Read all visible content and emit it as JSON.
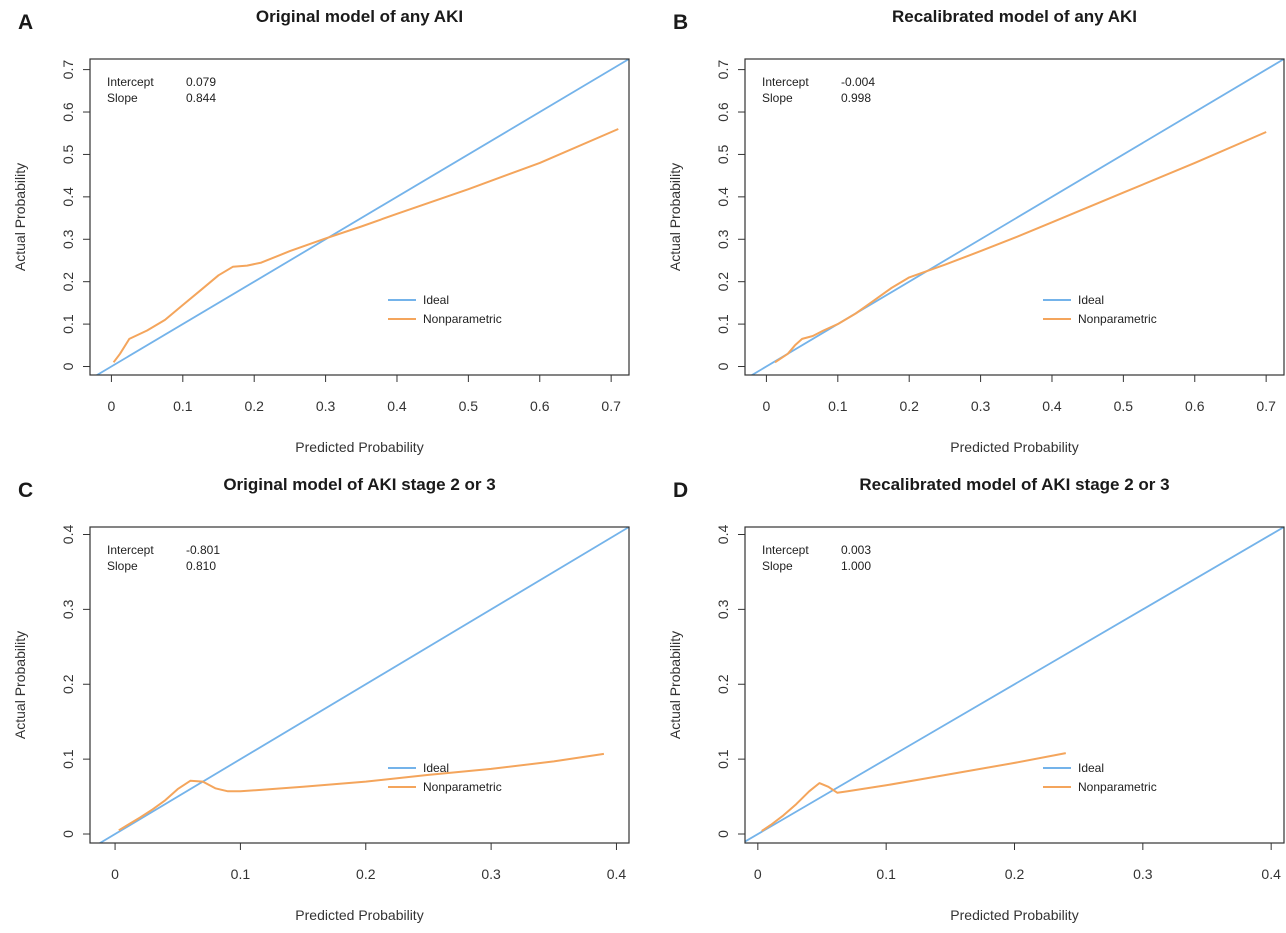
{
  "colors": {
    "ideal": "#74b3ea",
    "nonparametric": "#f4a55c",
    "axis": "#333333"
  },
  "chart_data": [
    {
      "letter": "A",
      "title": "Original model of any AKI",
      "type": "line",
      "xlabel": "Predicted Probability",
      "ylabel": "Actual Probability",
      "xlim": [
        -0.03,
        0.725
      ],
      "ylim": [
        -0.02,
        0.725
      ],
      "xticks": [
        0.0,
        0.1,
        0.2,
        0.3,
        0.4,
        0.5,
        0.6,
        0.7
      ],
      "yticks": [
        0.0,
        0.1,
        0.2,
        0.3,
        0.4,
        0.5,
        0.6,
        0.7
      ],
      "stats": [
        {
          "label": "Intercept",
          "value": "0.079"
        },
        {
          "label": "Slope",
          "value": "0.844"
        }
      ],
      "legend": [
        "Ideal",
        "Nonparametric"
      ],
      "legend_position": "right",
      "series": [
        {
          "name": "Ideal",
          "x": [
            -0.03,
            0.725
          ],
          "y": [
            -0.03,
            0.725
          ]
        },
        {
          "name": "Nonparametric",
          "x": [
            0.003,
            0.012,
            0.025,
            0.05,
            0.075,
            0.1,
            0.125,
            0.15,
            0.17,
            0.19,
            0.21,
            0.25,
            0.3,
            0.35,
            0.4,
            0.5,
            0.6,
            0.71
          ],
          "y": [
            0.01,
            0.03,
            0.065,
            0.085,
            0.11,
            0.145,
            0.18,
            0.215,
            0.235,
            0.238,
            0.245,
            0.272,
            0.302,
            0.33,
            0.36,
            0.418,
            0.48,
            0.56
          ]
        }
      ]
    },
    {
      "letter": "B",
      "title": "Recalibrated model of any AKI",
      "type": "line",
      "xlabel": "Predicted Probability",
      "ylabel": "Actual Probability",
      "xlim": [
        -0.03,
        0.725
      ],
      "ylim": [
        -0.02,
        0.725
      ],
      "xticks": [
        0.0,
        0.1,
        0.2,
        0.3,
        0.4,
        0.5,
        0.6,
        0.7
      ],
      "yticks": [
        0.0,
        0.1,
        0.2,
        0.3,
        0.4,
        0.5,
        0.6,
        0.7
      ],
      "stats": [
        {
          "label": "Intercept",
          "value": "-0.004"
        },
        {
          "label": "Slope",
          "value": "0.998"
        }
      ],
      "legend": [
        "Ideal",
        "Nonparametric"
      ],
      "legend_position": "right",
      "series": [
        {
          "name": "Ideal",
          "x": [
            -0.03,
            0.725
          ],
          "y": [
            -0.03,
            0.725
          ]
        },
        {
          "name": "Nonparametric",
          "x": [
            0.012,
            0.03,
            0.04,
            0.05,
            0.065,
            0.08,
            0.1,
            0.125,
            0.15,
            0.175,
            0.2,
            0.225,
            0.25,
            0.3,
            0.35,
            0.4,
            0.5,
            0.6,
            0.7
          ],
          "y": [
            0.01,
            0.03,
            0.05,
            0.065,
            0.072,
            0.085,
            0.1,
            0.125,
            0.155,
            0.185,
            0.21,
            0.225,
            0.24,
            0.272,
            0.305,
            0.34,
            0.41,
            0.48,
            0.553
          ]
        }
      ]
    },
    {
      "letter": "C",
      "title": "Original model of AKI stage 2 or 3",
      "type": "line",
      "xlabel": "Predicted Probability",
      "ylabel": "Actual Probability",
      "xlim": [
        -0.02,
        0.41
      ],
      "ylim": [
        -0.012,
        0.41
      ],
      "xticks": [
        0.0,
        0.1,
        0.2,
        0.3,
        0.4
      ],
      "yticks": [
        0.0,
        0.1,
        0.2,
        0.3,
        0.4
      ],
      "stats": [
        {
          "label": "Intercept",
          "value": "-0.801"
        },
        {
          "label": "Slope",
          "value": "0.810"
        }
      ],
      "legend": [
        "Ideal",
        "Nonparametric"
      ],
      "legend_position": "right",
      "series": [
        {
          "name": "Ideal",
          "x": [
            -0.02,
            0.41
          ],
          "y": [
            -0.02,
            0.41
          ]
        },
        {
          "name": "Nonparametric",
          "x": [
            0.003,
            0.01,
            0.02,
            0.03,
            0.04,
            0.05,
            0.06,
            0.07,
            0.08,
            0.09,
            0.1,
            0.15,
            0.2,
            0.25,
            0.3,
            0.35,
            0.39
          ],
          "y": [
            0.005,
            0.012,
            0.022,
            0.033,
            0.045,
            0.06,
            0.071,
            0.07,
            0.061,
            0.057,
            0.057,
            0.063,
            0.07,
            0.079,
            0.087,
            0.097,
            0.107
          ]
        }
      ]
    },
    {
      "letter": "D",
      "title": "Recalibrated model of AKI stage 2 or 3",
      "type": "line",
      "xlabel": "Predicted Probability",
      "ylabel": "Actual Probability",
      "xlim": [
        -0.01,
        0.41
      ],
      "ylim": [
        -0.012,
        0.41
      ],
      "xticks": [
        0.0,
        0.1,
        0.2,
        0.3,
        0.4
      ],
      "yticks": [
        0.0,
        0.1,
        0.2,
        0.3,
        0.4
      ],
      "stats": [
        {
          "label": "Intercept",
          "value": "0.003"
        },
        {
          "label": "Slope",
          "value": "1.000"
        }
      ],
      "legend": [
        "Ideal",
        "Nonparametric"
      ],
      "legend_position": "right",
      "series": [
        {
          "name": "Ideal",
          "x": [
            -0.02,
            0.41
          ],
          "y": [
            -0.02,
            0.41
          ]
        },
        {
          "name": "Nonparametric",
          "x": [
            0.003,
            0.01,
            0.02,
            0.03,
            0.04,
            0.048,
            0.055,
            0.062,
            0.07,
            0.1,
            0.13,
            0.16,
            0.2,
            0.24
          ],
          "y": [
            0.004,
            0.012,
            0.025,
            0.04,
            0.057,
            0.068,
            0.063,
            0.055,
            0.057,
            0.065,
            0.074,
            0.083,
            0.095,
            0.108
          ]
        }
      ]
    }
  ]
}
